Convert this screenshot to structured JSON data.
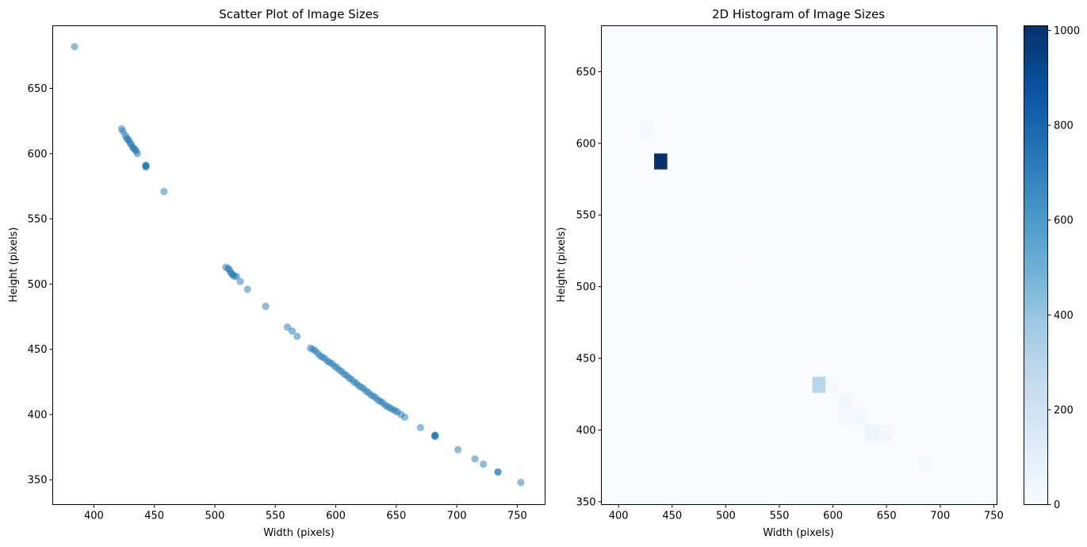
{
  "chart_data": [
    {
      "type": "scatter",
      "title": "Scatter Plot of Image Sizes",
      "xlabel": "Width (pixels)",
      "ylabel": "Height (pixels)",
      "xlim": [
        366,
        773
      ],
      "ylim": [
        331,
        698
      ],
      "xticks": [
        400,
        450,
        500,
        550,
        600,
        650,
        700,
        750
      ],
      "yticks": [
        350,
        400,
        450,
        500,
        550,
        600,
        650
      ],
      "grid": false,
      "color": "#1f77b4",
      "alpha": 0.5,
      "points": [
        [
          384,
          682
        ],
        [
          423,
          619
        ],
        [
          424,
          617
        ],
        [
          426,
          614
        ],
        [
          427,
          612
        ],
        [
          428,
          611
        ],
        [
          429,
          610
        ],
        [
          430,
          608
        ],
        [
          431,
          607
        ],
        [
          432,
          605
        ],
        [
          433,
          604
        ],
        [
          434,
          603
        ],
        [
          435,
          602
        ],
        [
          436,
          600
        ],
        [
          443,
          591
        ],
        [
          443,
          591
        ],
        [
          443,
          590
        ],
        [
          443,
          590
        ],
        [
          458,
          571
        ],
        [
          509,
          513
        ],
        [
          511,
          512
        ],
        [
          512,
          511
        ],
        [
          513,
          509
        ],
        [
          514,
          508
        ],
        [
          515,
          507
        ],
        [
          516,
          506
        ],
        [
          518,
          506
        ],
        [
          521,
          502
        ],
        [
          527,
          496
        ],
        [
          542,
          483
        ],
        [
          560,
          467
        ],
        [
          564,
          464
        ],
        [
          568,
          460
        ],
        [
          579,
          451
        ],
        [
          581,
          450
        ],
        [
          583,
          449
        ],
        [
          585,
          447
        ],
        [
          587,
          445
        ],
        [
          589,
          444
        ],
        [
          591,
          443
        ],
        [
          593,
          441
        ],
        [
          595,
          440
        ],
        [
          597,
          439
        ],
        [
          599,
          437
        ],
        [
          601,
          436
        ],
        [
          603,
          434
        ],
        [
          605,
          433
        ],
        [
          607,
          431
        ],
        [
          609,
          430
        ],
        [
          611,
          428
        ],
        [
          613,
          427
        ],
        [
          615,
          425
        ],
        [
          617,
          424
        ],
        [
          619,
          422
        ],
        [
          621,
          421
        ],
        [
          623,
          420
        ],
        [
          625,
          418
        ],
        [
          627,
          417
        ],
        [
          629,
          415
        ],
        [
          631,
          414
        ],
        [
          633,
          413
        ],
        [
          635,
          411
        ],
        [
          637,
          410
        ],
        [
          639,
          409
        ],
        [
          641,
          407
        ],
        [
          643,
          406
        ],
        [
          645,
          405
        ],
        [
          647,
          404
        ],
        [
          649,
          403
        ],
        [
          651,
          402
        ],
        [
          654,
          400
        ],
        [
          657,
          398
        ],
        [
          670,
          390
        ],
        [
          682,
          384
        ],
        [
          682,
          384
        ],
        [
          682,
          384
        ],
        [
          682,
          383
        ],
        [
          701,
          373
        ],
        [
          715,
          366
        ],
        [
          722,
          362
        ],
        [
          734,
          356
        ],
        [
          734,
          356
        ],
        [
          753,
          348
        ]
      ]
    },
    {
      "type": "heatmap",
      "title": "2D Histogram of Image Sizes",
      "xlabel": "Width (pixels)",
      "ylabel": "Height (pixels)",
      "xlim": [
        384,
        753
      ],
      "ylim": [
        348,
        682
      ],
      "xticks": [
        400,
        450,
        500,
        550,
        600,
        650,
        700,
        750
      ],
      "yticks": [
        350,
        400,
        450,
        500,
        550,
        600,
        650
      ],
      "colormap": "Blues",
      "colorbar": {
        "min": 0,
        "max": 1010,
        "ticks": [
          0,
          200,
          400,
          600,
          800,
          1000
        ]
      },
      "bins": {
        "x": [
          384,
          753,
          30
        ],
        "y": [
          348,
          682,
          30
        ]
      },
      "cells": [
        {
          "ix": 3,
          "iy": 23,
          "count": 15
        },
        {
          "ix": 4,
          "iy": 21,
          "count": 1010
        },
        {
          "ix": 10,
          "iy": 14,
          "count": 8
        },
        {
          "ix": 16,
          "iy": 8,
          "count": 6
        },
        {
          "ix": 16,
          "iy": 7,
          "count": 290
        },
        {
          "ix": 17,
          "iy": 7,
          "count": 12
        },
        {
          "ix": 17,
          "iy": 6,
          "count": 10
        },
        {
          "ix": 18,
          "iy": 6,
          "count": 40
        },
        {
          "ix": 18,
          "iy": 5,
          "count": 12
        },
        {
          "ix": 19,
          "iy": 5,
          "count": 25
        },
        {
          "ix": 20,
          "iy": 4,
          "count": 45
        },
        {
          "ix": 21,
          "iy": 4,
          "count": 30
        },
        {
          "ix": 21,
          "iy": 3,
          "count": 6
        },
        {
          "ix": 24,
          "iy": 2,
          "count": 18
        }
      ]
    }
  ]
}
